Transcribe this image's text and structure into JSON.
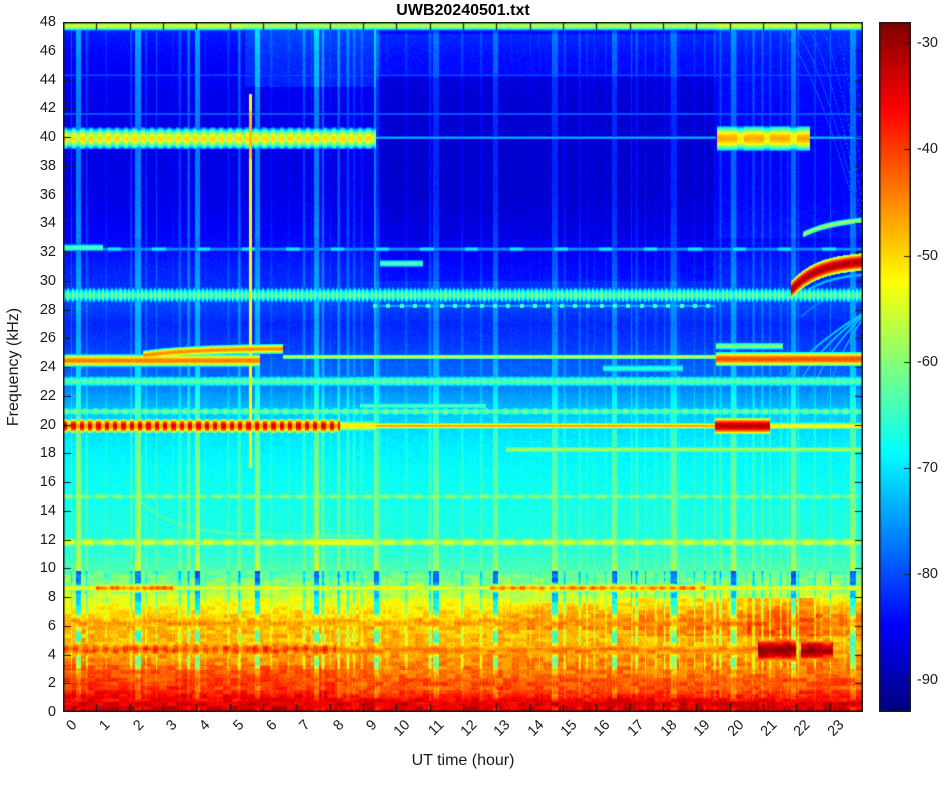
{
  "title": "UWB20240501.txt",
  "chart_data": {
    "type": "heatmap",
    "subtype": "spectrogram",
    "title": "UWB20240501.txt",
    "xlabel": "UT time (hour)",
    "ylabel": "Frequency (kHz)",
    "x_range": [
      0,
      24
    ],
    "y_range": [
      0,
      48
    ],
    "x_ticks": [
      0,
      1,
      2,
      3,
      4,
      5,
      6,
      7,
      8,
      9,
      10,
      11,
      12,
      13,
      14,
      15,
      16,
      17,
      18,
      19,
      20,
      21,
      22,
      23
    ],
    "y_ticks": [
      0,
      2,
      4,
      6,
      8,
      10,
      12,
      14,
      16,
      18,
      20,
      22,
      24,
      26,
      28,
      30,
      32,
      34,
      36,
      38,
      40,
      42,
      44,
      46,
      48
    ],
    "colorbar": {
      "ticks": [
        -30,
        -40,
        -50,
        -60,
        -70,
        -80,
        -90
      ],
      "caxis": [
        -93,
        -28
      ],
      "colormap": "jet",
      "units": "dB"
    },
    "grid": false,
    "legend": "none",
    "background_profile_f_db": [
      [
        0,
        -33
      ],
      [
        0.7,
        -35
      ],
      [
        1.6,
        -41
      ],
      [
        2.6,
        -43
      ],
      [
        3.6,
        -45
      ],
      [
        4.8,
        -48
      ],
      [
        5.8,
        -47.5
      ],
      [
        6.6,
        -49
      ],
      [
        7.3,
        -52
      ],
      [
        8.1,
        -56
      ],
      [
        9,
        -60
      ],
      [
        10,
        -64
      ],
      [
        11,
        -66
      ],
      [
        13,
        -67
      ],
      [
        15,
        -67.5
      ],
      [
        17,
        -68.5
      ],
      [
        19,
        -70
      ],
      [
        20.6,
        -72
      ],
      [
        22,
        -75
      ],
      [
        23.4,
        -78.5
      ],
      [
        24.3,
        -79
      ],
      [
        25.3,
        -81
      ],
      [
        27,
        -82.5
      ],
      [
        28.3,
        -80.5
      ],
      [
        29.6,
        -82
      ],
      [
        31,
        -83
      ],
      [
        33,
        -85
      ],
      [
        36,
        -86.5
      ],
      [
        40,
        -86.5
      ],
      [
        43,
        -86
      ],
      [
        45.5,
        -85
      ],
      [
        47,
        -83.5
      ],
      [
        48,
        -82.5
      ]
    ],
    "bands": [
      {
        "f": 47.75,
        "hw": 0.22,
        "t": [
          0,
          24
        ],
        "db": -58,
        "dash": {
          "p": 1.34,
          "duty": 0.93,
          "hi": -57
        }
      },
      {
        "f": 47.75,
        "hw": 0.22,
        "t": [
          0,
          5.4
        ],
        "db": -55
      },
      {
        "f": 47.75,
        "hw": 0.22,
        "t": [
          19.6,
          24
        ],
        "db": -55
      },
      {
        "f": 39.9,
        "hw": 0.45,
        "t": [
          0,
          9.4
        ],
        "db": -56,
        "dash": {
          "p": 0.26,
          "duty": 0.5,
          "hi": -50
        }
      },
      {
        "f": 39.9,
        "hw": 0.5,
        "t": [
          19.62,
          22.4
        ],
        "db": -51,
        "dash": {
          "p": 0.8,
          "duty": 0.75,
          "hi": -47
        }
      },
      {
        "f": 39.95,
        "hw": 0.1,
        "t": [
          9.4,
          19.6
        ],
        "db": -73
      },
      {
        "f": 39.95,
        "hw": 0.1,
        "t": [
          22.4,
          24
        ],
        "db": -72
      },
      {
        "f": 41.6,
        "hw": 0.09,
        "t": [
          0,
          24
        ],
        "db": -78
      },
      {
        "f": 44.3,
        "hw": 0.09,
        "t": [
          0,
          24
        ],
        "db": -79.5
      },
      {
        "f": 32.2,
        "hw": 0.14,
        "t": [
          0,
          24
        ],
        "db": -75,
        "dash": {
          "p": 1.34,
          "duty": 0.3,
          "hi": -69
        }
      },
      {
        "f": 32.3,
        "hw": 0.18,
        "t": [
          0,
          1.2
        ],
        "db": -63
      },
      {
        "f": 31.2,
        "hw": 0.18,
        "t": [
          9.5,
          10.8
        ],
        "db": -63
      },
      {
        "f": 29.0,
        "hw": 0.38,
        "t": [
          0,
          24
        ],
        "db": -67,
        "dash": {
          "p": 0.13,
          "duty": 0.5,
          "hi": -60
        }
      },
      {
        "f": 28.25,
        "hw": 0.13,
        "t": [
          9.3,
          19.6
        ],
        "db": -73,
        "dash": {
          "p": 0.4,
          "duty": 0.3,
          "hi": -61
        }
      },
      {
        "f": 24.45,
        "hw": 0.25,
        "t": [
          0,
          5.9
        ],
        "db": -44
      },
      {
        "f": 24.7,
        "hw": 0.11,
        "t": [
          6.6,
          19.6
        ],
        "db": -55
      },
      {
        "f": 24.55,
        "hw": 0.28,
        "t": [
          19.6,
          24
        ],
        "db": -41
      },
      {
        "f": 25.45,
        "hw": 0.18,
        "t": [
          19.6,
          21.6
        ],
        "db": -60
      },
      {
        "f": 23.0,
        "hw": 0.3,
        "t": [
          0,
          24
        ],
        "db": -64,
        "dash": {
          "p": 0.2,
          "duty": 0.5,
          "hi": -62
        }
      },
      {
        "f": 23.9,
        "hw": 0.22,
        "t": [
          16.2,
          18.6
        ],
        "db": -66
      },
      {
        "f": 19.9,
        "hw": 0.3,
        "t": [
          0,
          8.3
        ],
        "db": -46,
        "dash": {
          "p": 0.25,
          "duty": 0.52,
          "hi": -34
        }
      },
      {
        "f": 19.9,
        "hw": 0.25,
        "t": [
          8.3,
          9.4
        ],
        "db": -51
      },
      {
        "f": 19.9,
        "hw": 0.13,
        "t": [
          9.4,
          19.55
        ],
        "db": -46
      },
      {
        "f": 19.9,
        "hw": 0.32,
        "t": [
          19.55,
          21.2
        ],
        "db": -32
      },
      {
        "f": 19.9,
        "hw": 0.18,
        "t": [
          21.2,
          24
        ],
        "db": -52
      },
      {
        "f": 20.9,
        "hw": 0.22,
        "t": [
          0,
          24
        ],
        "db": -64,
        "dash": {
          "p": 0.3,
          "duty": 0.5,
          "hi": -60
        }
      },
      {
        "f": 21.3,
        "hw": 0.16,
        "t": [
          8.9,
          12.7
        ],
        "db": -63
      },
      {
        "f": 18.25,
        "hw": 0.18,
        "t": [
          13.3,
          24
        ],
        "db": -58
      },
      {
        "f": 15.0,
        "hw": 0.2,
        "t": [
          0,
          24
        ],
        "db": -63,
        "dash": {
          "p": 0.5,
          "duty": 0.55,
          "hi": -59
        }
      },
      {
        "f": 11.8,
        "hw": 0.26,
        "t": [
          0,
          24
        ],
        "db": -58,
        "dash": {
          "p": 0.6,
          "duty": 0.55,
          "hi": -54
        }
      },
      {
        "f": 11.8,
        "hw": 0.26,
        "t": [
          7.4,
          9.2
        ],
        "db": -53
      },
      {
        "f": 8.62,
        "hw": 0.16,
        "t": [
          0,
          24
        ],
        "db": -53
      },
      {
        "f": 8.62,
        "hw": 0.2,
        "t": [
          1,
          3.3
        ],
        "db": -46,
        "dash": {
          "p": 0.2,
          "duty": 0.45,
          "hi": -43
        }
      },
      {
        "f": 8.62,
        "hw": 0.2,
        "t": [
          12.8,
          19.3
        ],
        "db": -48,
        "dash": {
          "p": 0.3,
          "duty": 0.5,
          "hi": -44
        }
      },
      {
        "f": 4.35,
        "hw": 0.4,
        "t": [
          0,
          8.2
        ],
        "db": -43,
        "dash": {
          "p": 0.3,
          "duty": 0.5,
          "hi": -39
        }
      },
      {
        "f": 4.3,
        "hw": 0.42,
        "t": [
          8.2,
          20.85
        ],
        "db": -44.5
      },
      {
        "f": 4.3,
        "hw": 0.55,
        "t": [
          20.85,
          22.0
        ],
        "db": -29
      },
      {
        "f": 4.3,
        "hw": 0.5,
        "t": [
          22.15,
          23.1
        ],
        "db": -30
      },
      {
        "f": 6.2,
        "hw": 0.5,
        "t": [
          0,
          24
        ],
        "db": -47.5,
        "dash": {
          "p": 0.15,
          "duty": 0.6,
          "hi": -46
        }
      },
      {
        "f": 2.0,
        "hw": 0.8,
        "t": [
          0,
          24
        ],
        "db": -43.5,
        "dash": {
          "p": 0.1,
          "duty": 0.5,
          "hi": -41
        }
      },
      {
        "f": 0.55,
        "hw": 0.5,
        "t": [
          0,
          24
        ],
        "db": -34
      }
    ],
    "arcs": [
      {
        "t0": 21.85,
        "t1": 24,
        "f0": 29.35,
        "f1": 31.45,
        "tau": 0.8,
        "hw": 0.34,
        "db": -31
      },
      {
        "t0": 21.95,
        "t1": 24,
        "f0": 28.6,
        "f1": 30.6,
        "tau": 0.85,
        "hw": 0.12,
        "db": -72
      },
      {
        "t0": 22.15,
        "t1": 24,
        "f0": 27.5,
        "f1": 29.7,
        "tau": 0.95,
        "hw": 0.1,
        "db": -75
      },
      {
        "t0": 2.4,
        "t1": 6.6,
        "f0": 24.8,
        "f1": 25.3,
        "tau": 1.6,
        "hw": 0.2,
        "db": -45
      },
      {
        "t0": 2.2,
        "t1": 9.0,
        "f0": 14.9,
        "f1": 12.25,
        "tau": 1.1,
        "hw": 0.2,
        "db": -63
      },
      {
        "t0": 22.2,
        "t1": 24,
        "f0": 33.2,
        "f1": 34.4,
        "tau": 1.0,
        "hw": 0.15,
        "db": -58
      }
    ],
    "vlines": [
      {
        "t": 5.62,
        "f": [
          17,
          43
        ],
        "w": 0.05,
        "db": -53
      },
      {
        "t": 5.62,
        "f": [
          38.5,
          41.8
        ],
        "w": 0.04,
        "db": -48
      }
    ],
    "fans": [
      {
        "dir": "down",
        "tStart": 20.9,
        "spacing": 0.5,
        "count": 6,
        "tEnd": 24.3,
        "fTop": 48.5,
        "fBot": 30,
        "power": 1.8,
        "hw": 0.12,
        "db": -78
      },
      {
        "dir": "up",
        "tStart": 21.2,
        "spacing": 0.55,
        "count": 4,
        "tEnd": 24.2,
        "fTop": 28.0,
        "fBot": 19.8,
        "power": 0.5,
        "hw": 0.1,
        "db": -71
      }
    ],
    "patches": [
      {
        "t": [
          5.45,
          9.4
        ],
        "f": [
          43.5,
          47.6
        ],
        "add": 3
      },
      {
        "t": [
          9.4,
          19.6
        ],
        "f": [
          44.2,
          47.2
        ],
        "add": 2.5
      },
      {
        "t": [
          9.4,
          19.6
        ],
        "f": [
          30,
          48
        ],
        "add": -1.5
      },
      {
        "t": [
          19.6,
          24
        ],
        "f": [
          33,
          48
        ],
        "add": 1.5
      },
      {
        "t": [
          17,
          24
        ],
        "f": [
          5.3,
          7.9
        ],
        "add": 3.5
      },
      {
        "t": [
          13.4,
          17
        ],
        "f": [
          5.7,
          7.6
        ],
        "add": 2.5
      },
      {
        "t": [
          20.5,
          22.7
        ],
        "f": [
          4.9,
          7.9
        ],
        "add": 3
      },
      {
        "t": [
          0,
          8.3
        ],
        "f": [
          0.9,
          3.3
        ],
        "add": 2
      }
    ],
    "stripes": {
      "base_period_h": 0.25,
      "strong_period_h": 1.787,
      "strong_phase_h": 0.45,
      "regions": [
        {
          "t": [
            0,
            9.4
          ],
          "f": [
            9.8,
            33
          ],
          "amp": 8
        },
        {
          "t": [
            0,
            9.4
          ],
          "f": [
            33,
            48
          ],
          "amp": 9.5
        },
        {
          "t": [
            9.4,
            19.6
          ],
          "f": [
            9.8,
            48
          ],
          "amp": 5.5
        },
        {
          "t": [
            19.6,
            24
          ],
          "f": [
            9.8,
            48
          ],
          "amp": 6.5
        },
        {
          "t": [
            0,
            24
          ],
          "f": [
            3,
            9.8
          ],
          "amp": -16
        },
        {
          "t": [
            0,
            24
          ],
          "f": [
            0,
            3
          ],
          "amp": -5
        }
      ]
    },
    "accent_colors": {
      "axis": "#1a1a1a",
      "title": "#000000"
    }
  }
}
